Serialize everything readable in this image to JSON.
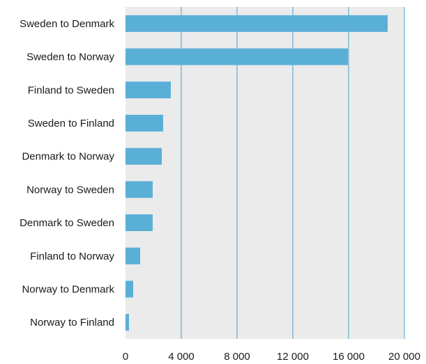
{
  "chart_data": {
    "type": "bar",
    "orientation": "horizontal",
    "categories": [
      "Sweden to Denmark",
      "Sweden to Norway",
      "Finland to Sweden",
      "Sweden to Finland",
      "Denmark to Norway",
      "Norway to Sweden",
      "Denmark to Sweden",
      "Finland to Norway",
      "Norway to Denmark",
      "Norway to Finland"
    ],
    "values": [
      18800,
      15950,
      3250,
      2700,
      2600,
      1950,
      1950,
      1050,
      550,
      250
    ],
    "title": "",
    "xlabel": "",
    "ylabel": "",
    "xlim": [
      0,
      20000
    ],
    "xticks": [
      0,
      4000,
      8000,
      12000,
      16000,
      20000
    ],
    "xtick_labels": [
      "0",
      "4 000",
      "8 000",
      "12 000",
      "16 000",
      "20 000"
    ],
    "grid": "vertical",
    "legend": "none",
    "colors": {
      "bar": "#5aafd7",
      "plot_background": "#ebebeb",
      "gridline": "#4a9fd0",
      "text": "#1a1a1a"
    }
  }
}
